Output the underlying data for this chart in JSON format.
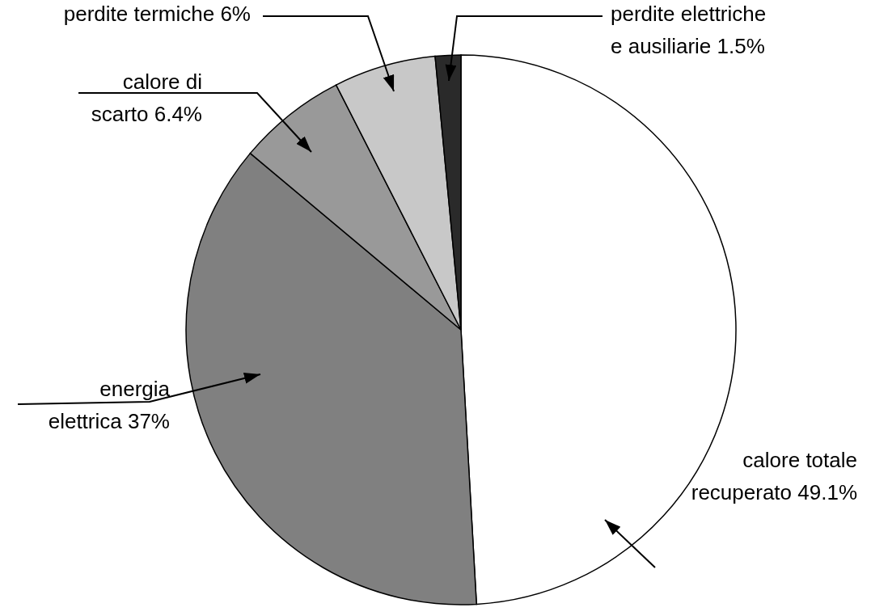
{
  "chart_data": {
    "type": "pie",
    "categories": [
      "calore totale\nrecuperato",
      "energia\nelettrica",
      "calore di\nscarto",
      "perdite termiche",
      "perdite elettriche\ne ausiliarie"
    ],
    "values": [
      49.1,
      37,
      6.4,
      6,
      1.5
    ],
    "value_labels": [
      "49.1%",
      "37%",
      "6.4%",
      "6%",
      "1.5%"
    ],
    "colors": [
      "#ffffff",
      "#808080",
      "#999999",
      "#c8c8c8",
      "#2a2a2a"
    ]
  }
}
